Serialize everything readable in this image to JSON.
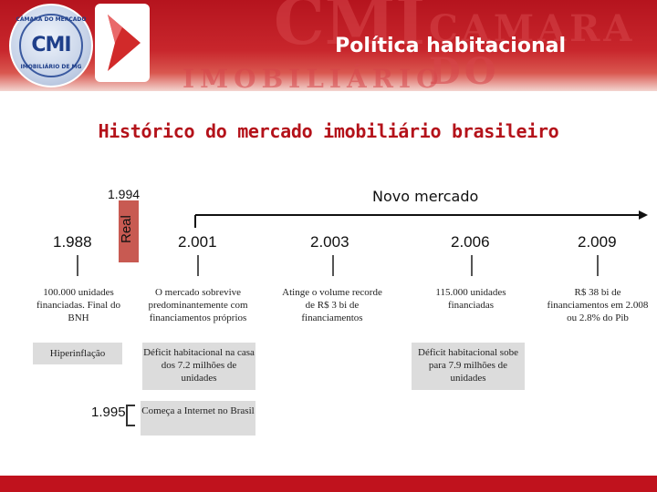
{
  "header": {
    "title": "Política habitacional",
    "watermark_1": "CMI",
    "watermark_2": "CAMARA DO MERCADO",
    "watermark_3": "IMOBILIÁRIO",
    "background_color": "#c8262c"
  },
  "logo": {
    "text": "CMI",
    "arc_top": "CÂMARA DO MERCADO",
    "arc_bottom": "IMOBILIÁRIO DE MG",
    "icon": "play-arrow-icon"
  },
  "subtitle": "Histórico do mercado imobiliário brasileiro",
  "timeline": {
    "top_year": "1.994",
    "real_label": "Real",
    "novo_mercado": "Novo mercado",
    "years": [
      "1.988",
      "2.001",
      "2.003",
      "2.006",
      "2.009"
    ],
    "descriptions": [
      "100.000 unidades financiadas. Final do BNH",
      "O mercado sobrevive predominantemente com financiamentos próprios",
      "Atinge o volume recorde de R$ 3 bi de financiamentos",
      "115.000 unidades financiadas",
      "R$ 38 bi de financiamentos em 2.008 ou 2.8% do Pib"
    ],
    "boxes": {
      "hiperinflacao": "Hiperinflação",
      "deficit_2001": "Déficit habitacional na casa dos 7.2 milhões de unidades",
      "deficit_2006": "Déficit habitacional sobe para 7.9 milhões de unidades",
      "internet": "Começa a Internet no Brasil"
    },
    "year_1995": "1.995"
  },
  "colors": {
    "accent": "#b4121a",
    "real_box": "#c85a52",
    "gray_box": "#dcdcdc"
  }
}
